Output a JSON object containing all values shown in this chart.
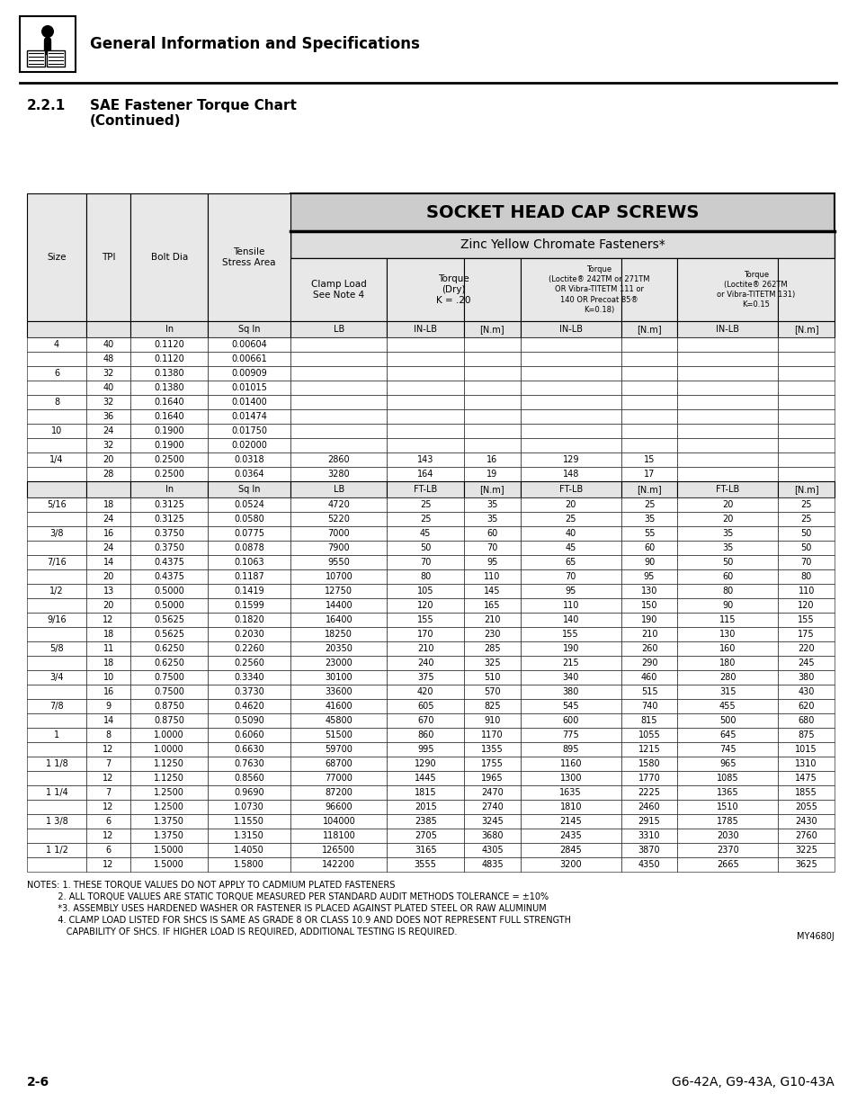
{
  "header_section": "General Information and Specifications",
  "section_num": "2.2.1",
  "section_title_line1": "SAE Fastener Torque Chart",
  "section_title_line2": "(Continued)",
  "title_main": "SOCKET HEAD CAP SCREWS",
  "title_sub": "Zinc Yellow Chromate Fasteners*",
  "units_row1": [
    "",
    "",
    "In",
    "Sq In",
    "LB",
    "IN-LB",
    "[N.m]",
    "IN-LB",
    "[N.m]",
    "IN-LB",
    "[N.m]"
  ],
  "units_row2": [
    "",
    "",
    "In",
    "Sq In",
    "LB",
    "FT-LB",
    "[N.m]",
    "FT-LB",
    "[N.m]",
    "FT-LB",
    "[N.m]"
  ],
  "rows_in_lb": [
    [
      "4",
      "40",
      "0.1120",
      "0.00604",
      "",
      "",
      "",
      "",
      "",
      "",
      ""
    ],
    [
      "",
      "48",
      "0.1120",
      "0.00661",
      "",
      "",
      "",
      "",
      "",
      "",
      ""
    ],
    [
      "6",
      "32",
      "0.1380",
      "0.00909",
      "",
      "",
      "",
      "",
      "",
      "",
      ""
    ],
    [
      "",
      "40",
      "0.1380",
      "0.01015",
      "",
      "",
      "",
      "",
      "",
      "",
      ""
    ],
    [
      "8",
      "32",
      "0.1640",
      "0.01400",
      "",
      "",
      "",
      "",
      "",
      "",
      ""
    ],
    [
      "",
      "36",
      "0.1640",
      "0.01474",
      "",
      "",
      "",
      "",
      "",
      "",
      ""
    ],
    [
      "10",
      "24",
      "0.1900",
      "0.01750",
      "",
      "",
      "",
      "",
      "",
      "",
      ""
    ],
    [
      "",
      "32",
      "0.1900",
      "0.02000",
      "",
      "",
      "",
      "",
      "",
      "",
      ""
    ],
    [
      "1/4",
      "20",
      "0.2500",
      "0.0318",
      "2860",
      "143",
      "16",
      "129",
      "15",
      "",
      ""
    ],
    [
      "",
      "28",
      "0.2500",
      "0.0364",
      "3280",
      "164",
      "19",
      "148",
      "17",
      "",
      ""
    ]
  ],
  "rows_ft_lb": [
    [
      "5/16",
      "18",
      "0.3125",
      "0.0524",
      "4720",
      "25",
      "35",
      "20",
      "25",
      "20",
      "25"
    ],
    [
      "",
      "24",
      "0.3125",
      "0.0580",
      "5220",
      "25",
      "35",
      "25",
      "35",
      "20",
      "25"
    ],
    [
      "3/8",
      "16",
      "0.3750",
      "0.0775",
      "7000",
      "45",
      "60",
      "40",
      "55",
      "35",
      "50"
    ],
    [
      "",
      "24",
      "0.3750",
      "0.0878",
      "7900",
      "50",
      "70",
      "45",
      "60",
      "35",
      "50"
    ],
    [
      "7/16",
      "14",
      "0.4375",
      "0.1063",
      "9550",
      "70",
      "95",
      "65",
      "90",
      "50",
      "70"
    ],
    [
      "",
      "20",
      "0.4375",
      "0.1187",
      "10700",
      "80",
      "110",
      "70",
      "95",
      "60",
      "80"
    ],
    [
      "1/2",
      "13",
      "0.5000",
      "0.1419",
      "12750",
      "105",
      "145",
      "95",
      "130",
      "80",
      "110"
    ],
    [
      "",
      "20",
      "0.5000",
      "0.1599",
      "14400",
      "120",
      "165",
      "110",
      "150",
      "90",
      "120"
    ],
    [
      "9/16",
      "12",
      "0.5625",
      "0.1820",
      "16400",
      "155",
      "210",
      "140",
      "190",
      "115",
      "155"
    ],
    [
      "",
      "18",
      "0.5625",
      "0.2030",
      "18250",
      "170",
      "230",
      "155",
      "210",
      "130",
      "175"
    ],
    [
      "5/8",
      "11",
      "0.6250",
      "0.2260",
      "20350",
      "210",
      "285",
      "190",
      "260",
      "160",
      "220"
    ],
    [
      "",
      "18",
      "0.6250",
      "0.2560",
      "23000",
      "240",
      "325",
      "215",
      "290",
      "180",
      "245"
    ],
    [
      "3/4",
      "10",
      "0.7500",
      "0.3340",
      "30100",
      "375",
      "510",
      "340",
      "460",
      "280",
      "380"
    ],
    [
      "",
      "16",
      "0.7500",
      "0.3730",
      "33600",
      "420",
      "570",
      "380",
      "515",
      "315",
      "430"
    ],
    [
      "7/8",
      "9",
      "0.8750",
      "0.4620",
      "41600",
      "605",
      "825",
      "545",
      "740",
      "455",
      "620"
    ],
    [
      "",
      "14",
      "0.8750",
      "0.5090",
      "45800",
      "670",
      "910",
      "600",
      "815",
      "500",
      "680"
    ],
    [
      "1",
      "8",
      "1.0000",
      "0.6060",
      "51500",
      "860",
      "1170",
      "775",
      "1055",
      "645",
      "875"
    ],
    [
      "",
      "12",
      "1.0000",
      "0.6630",
      "59700",
      "995",
      "1355",
      "895",
      "1215",
      "745",
      "1015"
    ],
    [
      "1 1/8",
      "7",
      "1.1250",
      "0.7630",
      "68700",
      "1290",
      "1755",
      "1160",
      "1580",
      "965",
      "1310"
    ],
    [
      "",
      "12",
      "1.1250",
      "0.8560",
      "77000",
      "1445",
      "1965",
      "1300",
      "1770",
      "1085",
      "1475"
    ],
    [
      "1 1/4",
      "7",
      "1.2500",
      "0.9690",
      "87200",
      "1815",
      "2470",
      "1635",
      "2225",
      "1365",
      "1855"
    ],
    [
      "",
      "12",
      "1.2500",
      "1.0730",
      "96600",
      "2015",
      "2740",
      "1810",
      "2460",
      "1510",
      "2055"
    ],
    [
      "1 3/8",
      "6",
      "1.3750",
      "1.1550",
      "104000",
      "2385",
      "3245",
      "2145",
      "2915",
      "1785",
      "2430"
    ],
    [
      "",
      "12",
      "1.3750",
      "1.3150",
      "118100",
      "2705",
      "3680",
      "2435",
      "3310",
      "2030",
      "2760"
    ],
    [
      "1 1/2",
      "6",
      "1.5000",
      "1.4050",
      "126500",
      "3165",
      "4305",
      "2845",
      "3870",
      "2370",
      "3225"
    ],
    [
      "",
      "12",
      "1.5000",
      "1.5800",
      "142200",
      "3555",
      "4835",
      "3200",
      "4350",
      "2665",
      "3625"
    ]
  ],
  "notes_line1": "NOTES: 1. THESE TORQUE VALUES DO NOT APPLY TO CADMIUM PLATED FASTENERS",
  "notes_line2": "           2. ALL TORQUE VALUES ARE STATIC TORQUE MEASURED PER STANDARD AUDIT METHODS TOLERANCE = ±10%",
  "notes_line3": "           *3. ASSEMBLY USES HARDENED WASHER OR FASTENER IS PLACED AGAINST PLATED STEEL OR RAW ALUMINUM",
  "notes_line4": "           4. CLAMP LOAD LISTED FOR SHCS IS SAME AS GRADE 8 OR CLASS 10.9 AND DOES NOT REPRESENT FULL STRENGTH",
  "notes_line5": "              CAPABILITY OF SHCS. IF HIGHER LOAD IS REQUIRED, ADDITIONAL TESTING IS REQUIRED.",
  "my_label": "MY4680J",
  "footer_left": "2-6",
  "footer_right": "G6-42A, G9-43A, G10-43A",
  "bg_header": "#cccccc",
  "bg_subheader": "#dddddd",
  "bg_colheader": "#e8e8e8",
  "bg_units": "#e4e4e4",
  "col_header_line1": "Torque",
  "col_header_dry": "Torque\n(Dry)\nK = .20",
  "col_header_242": "Torque\n(Loctite® 242TM or 271TM\nOR Vibra-TITETM 111 or\n140 OR Precoat 85®\nK=0.18)",
  "col_header_262": "Torque\n(Loctite® 262TM\nor Vibra-TITETM 131)\nK=0.15"
}
